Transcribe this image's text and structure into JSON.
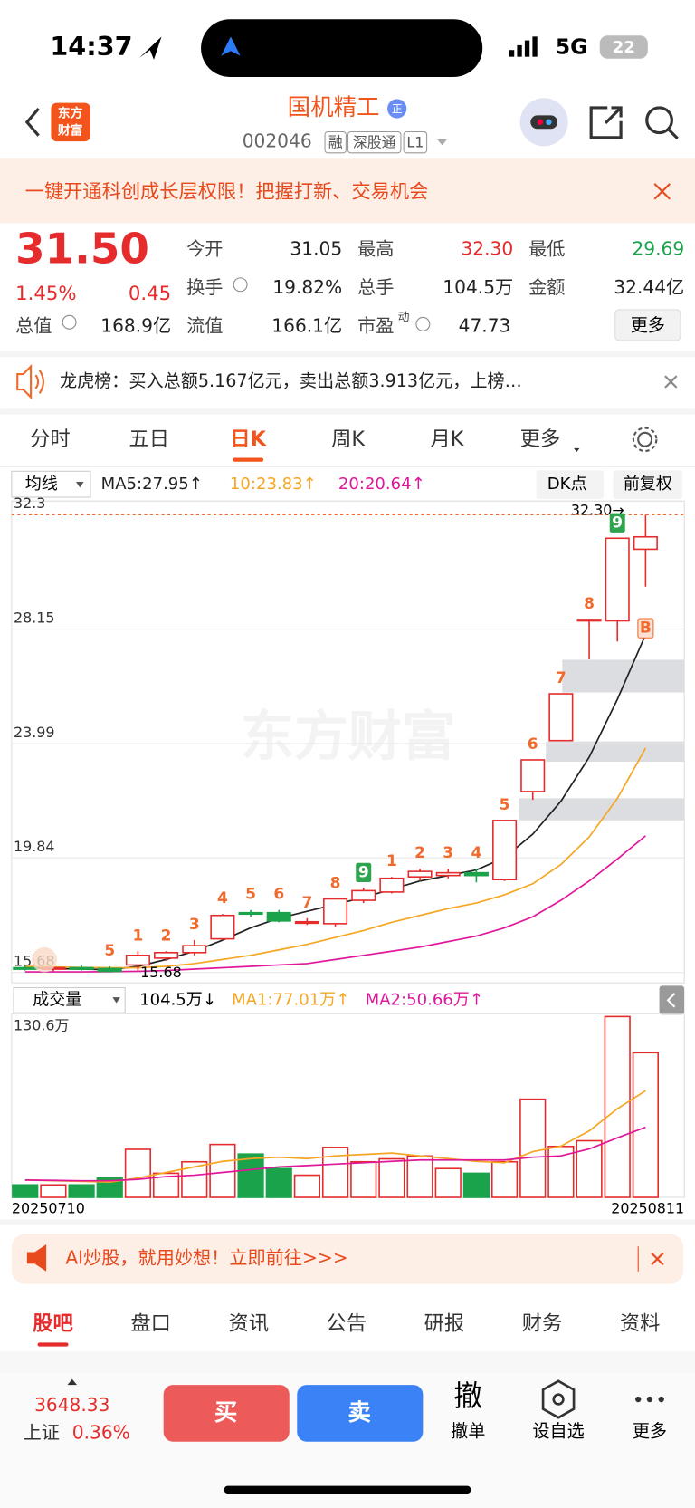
{
  "status_bar": {
    "time": "14:37",
    "network": "5G",
    "battery": "22"
  },
  "header": {
    "logo_top": "东方",
    "logo_bottom": "财富",
    "name": "国机精工",
    "badge": "正",
    "code": "002046",
    "tags": [
      "融",
      "深股通",
      "L1"
    ]
  },
  "promo": {
    "text": "一键开通科创成长层权限！把握打新、交易机会"
  },
  "quote": {
    "price": "31.50",
    "change_pct": "1.45%",
    "change": "0.45",
    "more": "更多",
    "fields": [
      {
        "label": "今开",
        "value": "31.05"
      },
      {
        "label": "最高",
        "value": "32.30"
      },
      {
        "label": "最低",
        "value": "29.69"
      },
      {
        "label": "换手",
        "value": "19.82%"
      },
      {
        "label": "总手",
        "value": "104.5万"
      },
      {
        "label": "金额",
        "value": "32.44亿"
      },
      {
        "label": "总值",
        "value": "168.9亿"
      },
      {
        "label": "流值",
        "value": "166.1亿"
      },
      {
        "label": "市盈",
        "sup": "动",
        "value": "47.73"
      }
    ]
  },
  "notice": {
    "text": "龙虎榜：买入总额5.167亿元，卖出总额3.913亿元，上榜…"
  },
  "period_tabs": [
    "分时",
    "五日",
    "日K",
    "周K",
    "月K",
    "更多"
  ],
  "chart": {
    "indicator": "均线",
    "dk_button": "DK点",
    "adjust_button": "前复权",
    "watermark": "东方财富",
    "high_label": "32.30→",
    "low_label": "15.68",
    "x_start": "20250710",
    "x_end": "20250811",
    "price": {
      "type": "candlestick",
      "ylim": [
        15.3,
        32.8
      ],
      "yticks": [
        15.68,
        19.84,
        23.99,
        28.15,
        32.3
      ],
      "open": [
        15.85,
        15.8,
        15.85,
        15.82,
        15.95,
        16.2,
        16.4,
        16.9,
        17.85,
        17.85,
        17.5,
        17.45,
        18.3,
        18.6,
        19.15,
        19.2,
        19.3,
        19.05,
        22.25,
        24.1,
        28.45,
        28.45,
        31.05
      ],
      "high": [
        15.95,
        15.9,
        15.95,
        15.9,
        16.45,
        16.45,
        16.85,
        17.8,
        17.95,
        17.95,
        17.65,
        18.35,
        18.75,
        19.15,
        19.45,
        19.45,
        19.45,
        21.2,
        23.4,
        25.8,
        28.5,
        31.45,
        32.3
      ],
      "low": [
        15.75,
        15.72,
        15.75,
        15.68,
        15.75,
        16.1,
        16.3,
        16.85,
        17.7,
        17.5,
        17.4,
        17.35,
        18.2,
        18.55,
        19.0,
        19.1,
        18.95,
        19.0,
        21.95,
        24.1,
        27.05,
        27.7,
        29.69
      ],
      "close": [
        15.8,
        15.85,
        15.82,
        15.72,
        16.3,
        16.4,
        16.65,
        17.75,
        17.8,
        17.55,
        17.52,
        18.35,
        18.65,
        19.1,
        19.35,
        19.3,
        19.2,
        21.2,
        23.4,
        25.8,
        28.5,
        31.45,
        31.5
      ],
      "signals": [
        null,
        null,
        null,
        {
          "text": "5",
          "color": "#f06a2c"
        },
        {
          "text": "1",
          "color": "#f06a2c"
        },
        {
          "text": "2",
          "color": "#f06a2c"
        },
        {
          "text": "3",
          "color": "#f06a2c"
        },
        {
          "text": "4",
          "color": "#f06a2c"
        },
        {
          "text": "5",
          "color": "#f06a2c"
        },
        {
          "text": "6",
          "color": "#f06a2c"
        },
        {
          "text": "7",
          "color": "#f06a2c"
        },
        {
          "text": "8",
          "color": "#f06a2c"
        },
        {
          "text": "9",
          "color": "#2ea44f",
          "boxed": true
        },
        {
          "text": "1",
          "color": "#f06a2c"
        },
        {
          "text": "2",
          "color": "#f06a2c"
        },
        {
          "text": "3",
          "color": "#f06a2c"
        },
        {
          "text": "4",
          "color": "#f06a2c"
        },
        {
          "text": "5",
          "color": "#f06a2c"
        },
        {
          "text": "6",
          "color": "#f06a2c"
        },
        {
          "text": "7",
          "color": "#f06a2c"
        },
        {
          "text": "8",
          "color": "#f06a2c"
        },
        {
          "text": "9",
          "color": "#2ea44f",
          "boxed": true
        },
        {
          "text": "B",
          "color": "#f06a2c",
          "boxed": true,
          "position": "below"
        }
      ],
      "series": [
        {
          "name": "MA5:27.95↑",
          "color": "#222222",
          "values": [
            15.85,
            15.82,
            15.8,
            15.78,
            15.9,
            16.15,
            16.45,
            16.85,
            17.3,
            17.65,
            17.9,
            18.15,
            18.4,
            18.7,
            19.0,
            19.2,
            19.4,
            19.85,
            20.7,
            21.9,
            23.5,
            25.6,
            27.95
          ]
        },
        {
          "name": "10:23.83↑",
          "color": "#f5a623",
          "values": [
            15.9,
            15.88,
            15.86,
            15.85,
            15.85,
            15.9,
            16.0,
            16.15,
            16.3,
            16.5,
            16.7,
            16.95,
            17.2,
            17.5,
            17.75,
            18.0,
            18.2,
            18.5,
            18.9,
            19.6,
            20.6,
            22.0,
            23.83
          ]
        },
        {
          "name": "20:20.64↑",
          "color": "#e0179a",
          "values": [
            15.7,
            15.7,
            15.7,
            15.71,
            15.72,
            15.75,
            15.8,
            15.85,
            15.9,
            15.95,
            16.0,
            16.15,
            16.3,
            16.45,
            16.6,
            16.8,
            17.0,
            17.3,
            17.7,
            18.3,
            19.0,
            19.8,
            20.64
          ]
        }
      ]
    },
    "volume": {
      "type": "bar",
      "title": "成交量",
      "current": "104.5万↓",
      "ylim": [
        0,
        130.6
      ],
      "yticks": [
        {
          "value": 130.6,
          "label": "130.6万"
        }
      ],
      "values": [
        9.0,
        9.0,
        9.0,
        13.9,
        34.7,
        17.4,
        25.7,
        38.2,
        31.3,
        20.8,
        16.0,
        36.1,
        25.7,
        27.8,
        29.9,
        20.8,
        17.4,
        25.7,
        70.9,
        36.8,
        40.9,
        130.6,
        104.5
      ],
      "series": [
        {
          "name": "MA1:77.01万↑",
          "color": "#f5a623",
          "values": [
            12.5,
            12,
            11.5,
            11,
            14,
            18,
            22,
            26,
            28,
            29,
            28,
            30,
            31,
            32,
            30,
            28,
            26,
            25,
            33,
            37,
            48,
            64,
            77.01
          ]
        },
        {
          "name": "MA2:50.66万↑",
          "color": "#e0179a",
          "values": [
            12.5,
            12.3,
            12,
            12,
            13,
            15,
            16,
            18,
            20,
            22,
            23,
            24,
            25,
            26,
            27,
            27,
            27,
            27,
            29,
            30,
            35,
            43,
            50.66
          ]
        }
      ]
    }
  },
  "ai_banner": {
    "text": "AI炒股，就用妙想！立即前往>>>"
  },
  "bottom_tabs": [
    "股吧",
    "盘口",
    "资讯",
    "公告",
    "研报",
    "财务",
    "资料"
  ],
  "footer": {
    "index_value": "3648.33",
    "index_name": "上证",
    "index_change": "0.36%",
    "buy": "买",
    "sell": "卖",
    "cancel_icon": "撤",
    "cancel": "撤单",
    "watch": "设自选",
    "more": "更多"
  }
}
